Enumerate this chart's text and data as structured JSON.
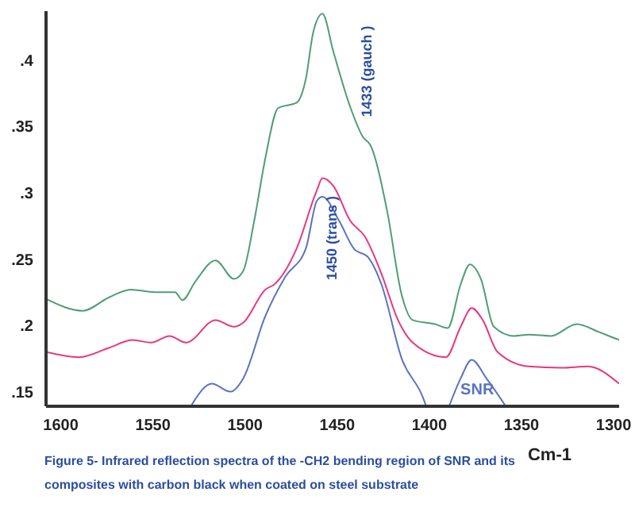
{
  "chart_data": {
    "type": "line",
    "title": "Figure 5- Infrared reflection spectra of the -CH2 bending region of SNR and its composites with carbon black when coated on steel substrate",
    "xlabel": "Cm-1",
    "xlim": [
      1608,
      1297
    ],
    "xticks": [
      1600,
      1550,
      1500,
      1450,
      1400,
      1350,
      1300
    ],
    "ylim": [
      0.139,
      0.437
    ],
    "yticks": [
      {
        "value": 0.15,
        "label": ".15"
      },
      {
        "value": 0.2,
        "label": ".2"
      },
      {
        "value": 0.25,
        "label": ".25"
      },
      {
        "value": 0.3,
        "label": ".3"
      },
      {
        "value": 0.35,
        "label": ".35"
      },
      {
        "value": 0.4,
        "label": ".4"
      }
    ],
    "marker": "none",
    "line_style": "solid",
    "series": [
      {
        "color": "#4f9e72",
        "x": [
          1608,
          1588,
          1574,
          1562,
          1549,
          1538,
          1534,
          1527,
          1516,
          1506,
          1501,
          1495,
          1489,
          1482,
          1472,
          1467,
          1463,
          1458,
          1452,
          1443,
          1436,
          1432,
          1423,
          1415,
          1409,
          1397,
          1390,
          1383,
          1378,
          1372,
          1365,
          1354,
          1346,
          1334,
          1320,
          1308,
          1297
        ],
        "values": [
          0.22,
          0.211,
          0.221,
          0.227,
          0.225,
          0.225,
          0.219,
          0.233,
          0.249,
          0.235,
          0.241,
          0.279,
          0.326,
          0.364,
          0.368,
          0.386,
          0.421,
          0.435,
          0.406,
          0.365,
          0.342,
          0.336,
          0.287,
          0.223,
          0.204,
          0.201,
          0.198,
          0.231,
          0.246,
          0.235,
          0.199,
          0.192,
          0.193,
          0.192,
          0.201,
          0.195,
          0.189
        ]
      },
      {
        "color": "#e8377f",
        "x": [
          1608,
          1590,
          1574,
          1561,
          1551,
          1541,
          1532,
          1516,
          1506,
          1501,
          1489,
          1484,
          1472,
          1461,
          1458,
          1452,
          1443,
          1435,
          1426,
          1417,
          1409,
          1391,
          1383,
          1377,
          1371,
          1363,
          1346,
          1328,
          1314,
          1297
        ],
        "values": [
          0.18,
          0.176,
          0.183,
          0.189,
          0.187,
          0.192,
          0.187,
          0.204,
          0.199,
          0.202,
          0.227,
          0.231,
          0.258,
          0.302,
          0.311,
          0.305,
          0.279,
          0.267,
          0.239,
          0.204,
          0.187,
          0.176,
          0.199,
          0.213,
          0.204,
          0.18,
          0.169,
          0.168,
          0.169,
          0.156
        ]
      },
      {
        "name": "SNR",
        "color": "#5b72c2",
        "x": [
          1529,
          1518,
          1508,
          1501,
          1489,
          1478,
          1467,
          1461,
          1458,
          1449,
          1441,
          1433,
          1426,
          1415,
          1403,
          1402,
          1395,
          1389,
          1383,
          1377,
          1369,
          1359
        ],
        "values": [
          0.14,
          0.156,
          0.15,
          0.16,
          0.207,
          0.237,
          0.258,
          0.294,
          0.297,
          0.279,
          0.258,
          0.251,
          0.231,
          0.175,
          0.144,
          0.14,
          null,
          0.14,
          0.16,
          0.174,
          0.16,
          0.14
        ]
      }
    ],
    "annotations": [
      "1433 (gauch )",
      "1450 (trans )"
    ]
  }
}
